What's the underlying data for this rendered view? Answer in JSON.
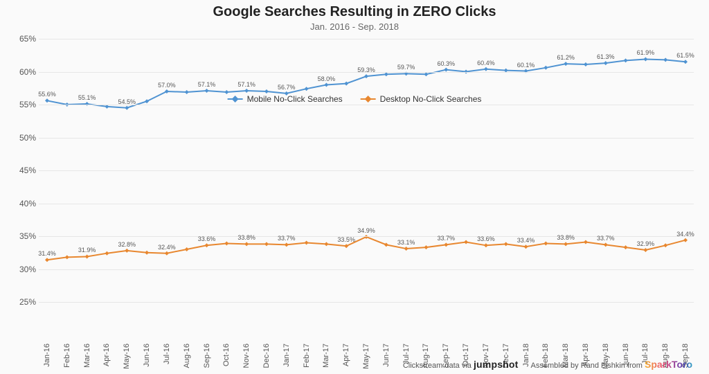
{
  "title": "Google Searches Resulting in ZERO Clicks",
  "subtitle": "Jan. 2016 - Sep. 2018",
  "chart": {
    "type": "line",
    "background_color": "#fafafa",
    "grid_color": "#e6e6e6",
    "y_axis": {
      "min": 25,
      "max": 65,
      "tick_step": 5,
      "suffix": "%",
      "label_fontsize": 12,
      "label_color": "#555555"
    },
    "x_labels": [
      "Jan-16",
      "Feb-16",
      "Mar-16",
      "Apr-16",
      "May-16",
      "Jun-16",
      "Jul-16",
      "Aug-16",
      "Sep-16",
      "Oct-16",
      "Nov-16",
      "Dec-16",
      "Jan-17",
      "Feb-17",
      "Mar-17",
      "Apr-17",
      "May-17",
      "Jun-17",
      "Jul-17",
      "Aug-17",
      "Sep-17",
      "Oct-17",
      "Nov-17",
      "Dec-17",
      "Jan-18",
      "Feb-18",
      "Mar-18",
      "Apr-18",
      "May-18",
      "Jun-18",
      "Jul-18",
      "Aug-18",
      "Sep-18"
    ],
    "x_label_fontsize": 11,
    "x_label_rotation_deg": -90,
    "point_label_fontsize": 9,
    "series": [
      {
        "name": "Mobile No-Click Searches",
        "color": "#4f93d2",
        "line_width": 2,
        "marker": "diamond",
        "marker_size": 6,
        "values": [
          55.6,
          55.0,
          55.1,
          54.7,
          54.5,
          55.5,
          57.0,
          56.9,
          57.1,
          56.9,
          57.1,
          57.0,
          56.7,
          57.4,
          58.0,
          58.2,
          59.3,
          59.6,
          59.7,
          59.6,
          60.3,
          60.0,
          60.4,
          60.2,
          60.1,
          60.6,
          61.2,
          61.1,
          61.3,
          61.7,
          61.9,
          61.8,
          61.5
        ],
        "point_labels": {
          "0": "55.6%",
          "2": "55.1%",
          "4": "54.5%",
          "6": "57.0%",
          "8": "57.1%",
          "10": "57.1%",
          "12": "56.7%",
          "14": "58.0%",
          "16": "59.3%",
          "18": "59.7%",
          "20": "60.3%",
          "22": "60.4%",
          "24": "60.1%",
          "26": "61.2%",
          "28": "61.3%",
          "30": "61.9%",
          "32": "61.5%"
        }
      },
      {
        "name": "Desktop No-Click Searches",
        "color": "#e8872f",
        "line_width": 2,
        "marker": "diamond",
        "marker_size": 6,
        "values": [
          31.4,
          31.8,
          31.9,
          32.4,
          32.8,
          32.5,
          32.4,
          33.0,
          33.6,
          33.9,
          33.8,
          33.8,
          33.7,
          34.0,
          33.8,
          33.5,
          34.9,
          33.7,
          33.1,
          33.3,
          33.7,
          34.1,
          33.6,
          33.8,
          33.4,
          33.9,
          33.8,
          34.1,
          33.7,
          33.3,
          32.9,
          33.6,
          34.4
        ],
        "point_labels": {
          "0": "31.4%",
          "2": "31.9%",
          "4": "32.8%",
          "6": "32.4%",
          "8": "33.6%",
          "10": "33.8%",
          "12": "33.7%",
          "15": "33.5%",
          "16": "34.9%",
          "18": "33.1%",
          "20": "33.7%",
          "22": "33.6%",
          "24": "33.4%",
          "26": "33.8%",
          "28": "33.7%",
          "30": "32.9%",
          "32": "34.4%"
        }
      }
    ],
    "legend": {
      "items": [
        "Mobile No-Click Searches",
        "Desktop No-Click Searches"
      ],
      "position": "upper-center-inside"
    }
  },
  "credits": {
    "left_prefix": "Clickstream data via",
    "left_brand": "jumpshot",
    "right_prefix": "Assembled by Rand Fishkin from",
    "right_brand": "SparkToro"
  }
}
